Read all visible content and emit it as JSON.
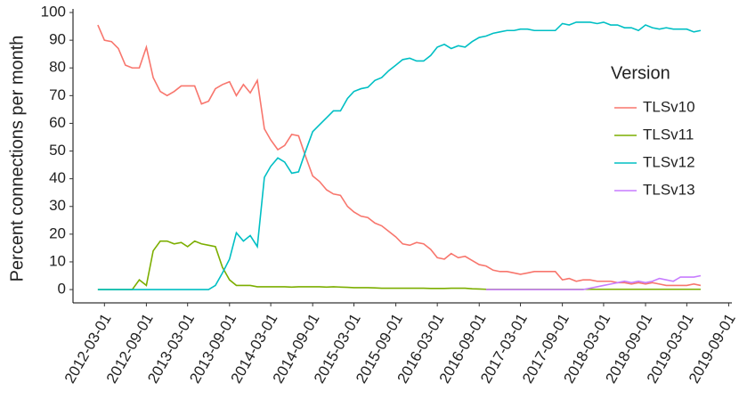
{
  "chart_data": {
    "type": "line",
    "y_label": "Percent connections per month",
    "legend_title": "Version",
    "legend_position": "right",
    "x": [
      "2012-02-01",
      "2012-03-01",
      "2012-04-01",
      "2012-05-01",
      "2012-06-01",
      "2012-07-01",
      "2012-08-01",
      "2012-09-01",
      "2012-10-01",
      "2012-11-01",
      "2012-12-01",
      "2013-01-01",
      "2013-02-01",
      "2013-03-01",
      "2013-04-01",
      "2013-05-01",
      "2013-06-01",
      "2013-07-01",
      "2013-08-01",
      "2013-09-01",
      "2013-10-01",
      "2013-11-01",
      "2013-12-01",
      "2014-01-01",
      "2014-02-01",
      "2014-03-01",
      "2014-04-01",
      "2014-05-01",
      "2014-06-01",
      "2014-07-01",
      "2014-08-01",
      "2014-09-01",
      "2014-10-01",
      "2014-11-01",
      "2014-12-01",
      "2015-01-01",
      "2015-02-01",
      "2015-03-01",
      "2015-04-01",
      "2015-05-01",
      "2015-06-01",
      "2015-07-01",
      "2015-08-01",
      "2015-09-01",
      "2015-10-01",
      "2015-11-01",
      "2015-12-01",
      "2016-01-01",
      "2016-02-01",
      "2016-03-01",
      "2016-04-01",
      "2016-05-01",
      "2016-06-01",
      "2016-07-01",
      "2016-08-01",
      "2016-09-01",
      "2016-10-01",
      "2016-11-01",
      "2016-12-01",
      "2017-01-01",
      "2017-02-01",
      "2017-03-01",
      "2017-04-01",
      "2017-05-01",
      "2017-06-01",
      "2017-07-01",
      "2017-08-01",
      "2017-09-01",
      "2017-10-01",
      "2017-11-01",
      "2017-12-01",
      "2018-01-01",
      "2018-02-01",
      "2018-03-01",
      "2018-04-01",
      "2018-05-01",
      "2018-06-01",
      "2018-07-01",
      "2018-08-01",
      "2018-09-01",
      "2018-10-01",
      "2018-11-01",
      "2018-12-01",
      "2019-01-01",
      "2019-02-01",
      "2019-03-01",
      "2019-04-01",
      "2019-05-01"
    ],
    "series": [
      {
        "name": "TLSv10",
        "color": "#F8766D",
        "values": [
          95.5,
          90,
          89.5,
          87,
          81,
          80,
          80,
          87.5,
          76.5,
          71.5,
          70,
          71.5,
          73.5,
          73.5,
          73.5,
          67,
          68,
          72.5,
          74,
          75,
          70,
          74,
          71,
          75.5,
          58,
          54,
          50.5,
          52,
          56,
          55.5,
          48,
          41,
          39,
          36,
          34.5,
          34,
          30,
          28,
          26.5,
          26,
          24,
          23,
          21,
          19,
          16.5,
          16,
          17,
          16.5,
          14.5,
          11.5,
          11,
          13,
          11.5,
          12,
          10.5,
          9,
          8.5,
          7,
          6.5,
          6.5,
          6,
          5.5,
          6,
          6.5,
          6.5,
          6.5,
          6.5,
          3.5,
          4,
          3,
          3.5,
          3.5,
          3,
          3,
          3,
          2.5,
          2.5,
          2,
          2.5,
          2,
          2.5,
          2,
          1.5,
          1.5,
          1.5,
          1.5,
          2,
          1.5
        ]
      },
      {
        "name": "TLSv11",
        "color": "#7CAE00",
        "values": [
          0,
          0,
          0,
          0,
          0,
          0,
          3.5,
          1.5,
          14,
          17.5,
          17.5,
          16.5,
          17,
          15.5,
          17.5,
          16.5,
          16,
          15.5,
          8,
          3.5,
          1.5,
          1.5,
          1.5,
          1,
          1,
          1,
          1,
          1,
          0.9,
          1,
          1,
          1,
          1,
          0.9,
          1,
          0.9,
          0.8,
          0.7,
          0.7,
          0.7,
          0.6,
          0.5,
          0.5,
          0.5,
          0.5,
          0.5,
          0.5,
          0.5,
          0.4,
          0.4,
          0.4,
          0.5,
          0.5,
          0.5,
          0.3,
          0.2,
          0.1,
          0.1,
          0.1,
          0.1,
          0.1,
          0.1,
          0.1,
          0.1,
          0.1,
          0.1,
          0.1,
          0.1,
          0.1,
          0.1,
          0.1,
          0.1,
          0.1,
          0.1,
          0.1,
          0.1,
          0.1,
          0.1,
          0.1,
          0.1,
          0.1,
          0.1,
          0.1,
          0.1,
          0.1,
          0.1,
          0.1,
          0.1
        ]
      },
      {
        "name": "TLSv12",
        "color": "#00BFC4",
        "values": [
          0,
          0,
          0,
          0,
          0,
          0,
          0,
          0,
          0,
          0,
          0,
          0,
          0,
          0,
          0,
          0,
          0,
          1.5,
          6,
          11,
          20.5,
          17.5,
          19.5,
          15.5,
          40.5,
          44.5,
          47.5,
          46,
          42,
          42.5,
          50,
          57,
          59.5,
          62,
          64.5,
          64.5,
          69,
          71.5,
          72.5,
          73,
          75.5,
          76.5,
          79,
          81,
          83,
          83.5,
          82.5,
          82.5,
          84.5,
          87.5,
          88.5,
          87,
          88,
          87.5,
          89.5,
          91,
          91.5,
          92.5,
          93,
          93.5,
          93.5,
          94,
          94,
          93.5,
          93.5,
          93.5,
          93.5,
          96,
          95.5,
          96.5,
          96.5,
          96.5,
          96,
          96.5,
          95.5,
          95.5,
          94.5,
          94.5,
          93.5,
          95.5,
          94.5,
          94,
          94.5,
          94,
          94,
          94,
          93,
          93.5
        ]
      },
      {
        "name": "TLSv13",
        "color": "#C77CFF",
        "values": [
          null,
          null,
          null,
          null,
          null,
          null,
          null,
          null,
          null,
          null,
          null,
          null,
          null,
          null,
          null,
          null,
          null,
          null,
          null,
          null,
          null,
          null,
          null,
          null,
          null,
          null,
          null,
          null,
          null,
          null,
          null,
          null,
          null,
          null,
          null,
          null,
          null,
          null,
          null,
          null,
          null,
          null,
          null,
          null,
          null,
          null,
          null,
          null,
          null,
          null,
          null,
          null,
          null,
          null,
          null,
          null,
          0,
          0,
          0,
          0,
          0,
          0,
          0,
          0,
          0,
          0,
          0,
          0,
          0,
          0,
          0,
          0.5,
          1,
          1.5,
          2,
          2.5,
          3,
          2.5,
          3,
          2.5,
          3,
          4,
          3.5,
          3,
          4.5,
          4.5,
          4.5,
          5
        ]
      }
    ],
    "xlim": [
      "2011-10-15",
      "2019-09-15"
    ],
    "xticks": [
      "2012-03-01",
      "2012-09-01",
      "2013-03-01",
      "2013-09-01",
      "2014-03-01",
      "2014-09-01",
      "2015-03-01",
      "2015-09-01",
      "2016-03-01",
      "2016-09-01",
      "2017-03-01",
      "2017-09-01",
      "2018-03-01",
      "2018-09-01",
      "2019-03-01",
      "2019-09-01"
    ],
    "ylim": [
      -4.8,
      101.3
    ],
    "yticks": [
      0,
      10,
      20,
      30,
      40,
      50,
      60,
      70,
      80,
      90,
      100
    ],
    "grid": false
  }
}
